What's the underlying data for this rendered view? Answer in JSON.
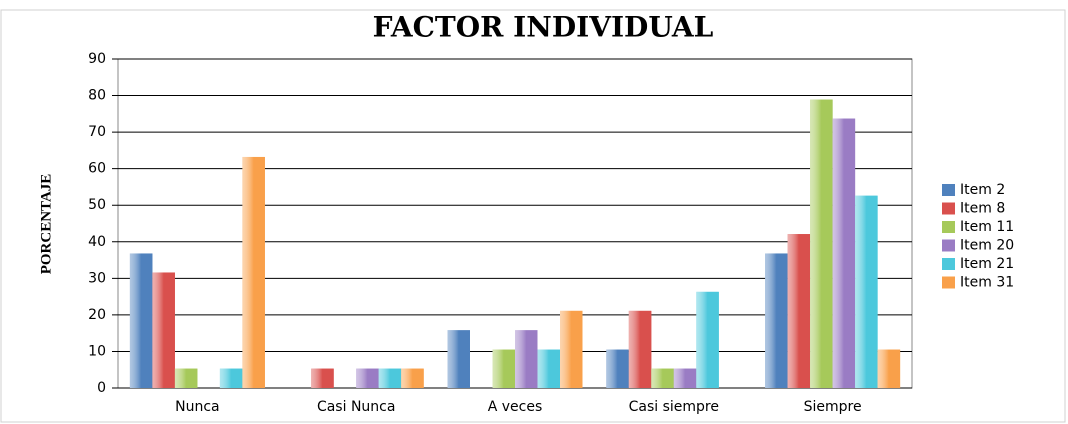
{
  "chart_data": {
    "type": "bar",
    "title": "FACTOR INDIVIDUAL",
    "y_label": "PORCENTAJE",
    "categories": [
      "Nunca",
      "Casi Nunca",
      "A veces",
      "Casi siempre",
      "Siempre"
    ],
    "series": [
      {
        "name": "Item 2",
        "color": "#4f81bd",
        "values": [
          36.8,
          0,
          15.8,
          10.5,
          36.8
        ]
      },
      {
        "name": "Item 8",
        "color": "#d9504d",
        "values": [
          31.6,
          5.3,
          0,
          21.1,
          42.1
        ]
      },
      {
        "name": "Item 11",
        "color": "#a6c95a",
        "values": [
          5.3,
          0,
          10.5,
          5.3,
          78.9
        ]
      },
      {
        "name": "Item 20",
        "color": "#9a7cc4",
        "values": [
          0,
          5.3,
          15.8,
          5.3,
          73.7
        ]
      },
      {
        "name": "Item 21",
        "color": "#4cc8dc",
        "values": [
          5.3,
          5.3,
          10.5,
          26.3,
          52.6
        ]
      },
      {
        "name": "Item 31",
        "color": "#f9a04a",
        "values": [
          63.2,
          5.3,
          21.1,
          0,
          10.5
        ]
      }
    ],
    "ylim": [
      0,
      90
    ],
    "yticks": [
      0,
      10,
      20,
      30,
      40,
      50,
      60,
      70,
      80,
      90
    ],
    "grid": true,
    "legend": "right"
  }
}
